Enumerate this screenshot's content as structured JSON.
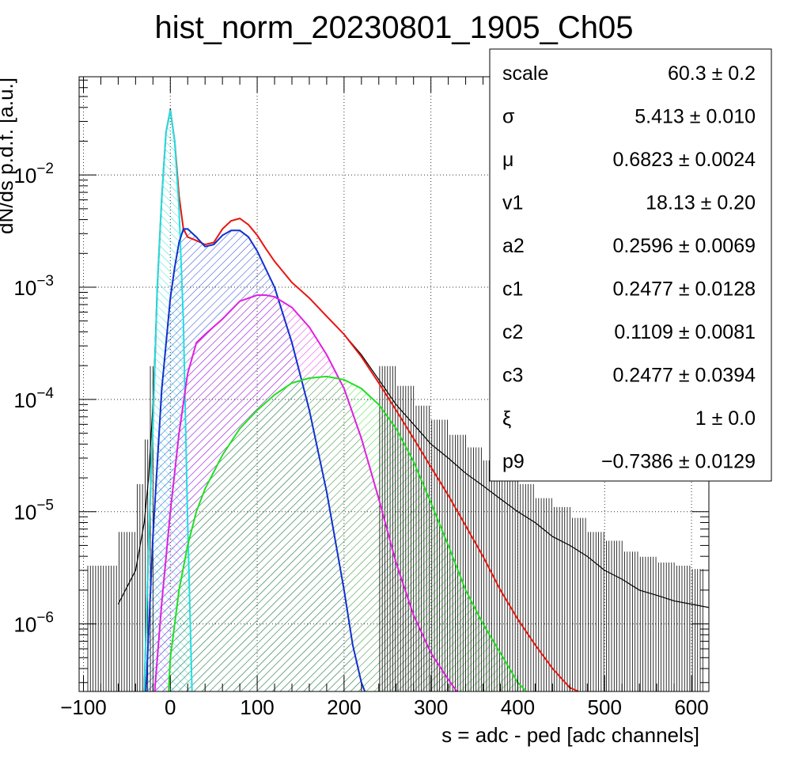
{
  "chart_data": {
    "type": "line",
    "title": "hist_norm_20230801_1905_Ch05",
    "xlabel": "s = adc - ped [adc channels]",
    "ylabel": "dN/ds p.d.f. [a.u.]",
    "xlim": [
      -105,
      620
    ],
    "ylim": [
      2.5e-07,
      0.075
    ],
    "yscale": "log",
    "grid": true,
    "x_ticks": [
      {
        "value": -100,
        "label": "−100"
      },
      {
        "value": 0,
        "label": "0"
      },
      {
        "value": 100,
        "label": "100"
      },
      {
        "value": 200,
        "label": "200"
      },
      {
        "value": 300,
        "label": "300"
      },
      {
        "value": 400,
        "label": "400"
      },
      {
        "value": 500,
        "label": "500"
      },
      {
        "value": 600,
        "label": "600"
      }
    ],
    "y_ticks": [
      {
        "value": 1e-06,
        "base": "10",
        "exp": "−6"
      },
      {
        "value": 1e-05,
        "base": "10",
        "exp": "−5"
      },
      {
        "value": 0.0001,
        "base": "10",
        "exp": "−4"
      },
      {
        "value": 0.001,
        "base": "10",
        "exp": "−3"
      },
      {
        "value": 0.01,
        "base": "10",
        "exp": "−2"
      }
    ],
    "series": [
      {
        "color": "#000000",
        "style": "histogram",
        "x": [
          -60,
          -40,
          -30,
          -25,
          -20,
          -15,
          -10,
          -5,
          0,
          5,
          10,
          15,
          20,
          25,
          30,
          40,
          50,
          60,
          70,
          80,
          90,
          100,
          110,
          120,
          140,
          160,
          180,
          200,
          220,
          240,
          260,
          280,
          300,
          320,
          340,
          360,
          380,
          400,
          420,
          440,
          460,
          480,
          500,
          520,
          540,
          560,
          580,
          600,
          620
        ],
        "y": [
          1.5e-06,
          3e-06,
          8e-06,
          2e-05,
          9e-05,
          0.001,
          0.006,
          0.024,
          0.039,
          0.02,
          0.0065,
          0.0033,
          0.0028,
          0.0027,
          0.0026,
          0.0024,
          0.0025,
          0.0033,
          0.0039,
          0.0041,
          0.0036,
          0.0029,
          0.0022,
          0.0017,
          0.0011,
          0.0008,
          0.00055,
          0.00038,
          0.00025,
          0.00015,
          9e-05,
          6e-05,
          4e-05,
          3e-05,
          2.2e-05,
          1.7e-05,
          1.3e-05,
          1e-05,
          8e-06,
          6e-06,
          5e-06,
          4e-06,
          3e-06,
          2.5e-06,
          2e-06,
          1.8e-06,
          1.6e-06,
          1.5e-06,
          1.4e-06
        ]
      },
      {
        "color": "#e8150f",
        "style": "line",
        "x": [
          -30,
          -25,
          -20,
          -15,
          -10,
          -5,
          0,
          5,
          10,
          15,
          20,
          25,
          30,
          40,
          50,
          60,
          70,
          80,
          90,
          100,
          110,
          120,
          140,
          160,
          180,
          200,
          220,
          240,
          260,
          280,
          300,
          320,
          340,
          360,
          380,
          400,
          420,
          440,
          460,
          470
        ],
        "y": [
          2.5e-07,
          5e-06,
          6e-05,
          0.001,
          0.006,
          0.024,
          0.038,
          0.02,
          0.0065,
          0.0033,
          0.0028,
          0.0027,
          0.0026,
          0.0024,
          0.0025,
          0.0033,
          0.0039,
          0.0041,
          0.0036,
          0.0029,
          0.0022,
          0.0017,
          0.0011,
          0.0008,
          0.00055,
          0.00038,
          0.00024,
          0.00014,
          8e-05,
          4.5e-05,
          2.5e-05,
          1.4e-05,
          7.5e-06,
          4e-06,
          2e-06,
          1.1e-06,
          6.5e-07,
          4e-07,
          2.7e-07,
          2.5e-07
        ]
      },
      {
        "color": "#20e0e0",
        "style": "line-hatched",
        "x": [
          -30,
          -25,
          -20,
          -15,
          -10,
          -5,
          0,
          5,
          10,
          15,
          20,
          25
        ],
        "y": [
          2.5e-07,
          5e-06,
          6e-05,
          0.001,
          0.006,
          0.024,
          0.038,
          0.02,
          0.005,
          0.0005,
          8e-06,
          2.5e-07
        ]
      },
      {
        "color": "#1030d0",
        "style": "line-hatched",
        "x": [
          -28,
          -20,
          -10,
          0,
          5,
          10,
          15,
          20,
          30,
          40,
          50,
          60,
          70,
          80,
          90,
          100,
          120,
          140,
          160,
          180,
          200,
          210,
          220,
          224
        ],
        "y": [
          2.5e-07,
          6e-06,
          0.00012,
          0.0008,
          0.0015,
          0.0025,
          0.0033,
          0.0033,
          0.0028,
          0.0023,
          0.0024,
          0.0029,
          0.0032,
          0.0032,
          0.0028,
          0.0021,
          0.001,
          0.00032,
          8e-05,
          1.5e-05,
          2e-06,
          6.5e-07,
          3e-07,
          2.5e-07
        ]
      },
      {
        "color": "#e020e0",
        "style": "line-hatched",
        "x": [
          -18,
          -10,
          0,
          10,
          20,
          30,
          40,
          60,
          80,
          100,
          110,
          120,
          140,
          160,
          180,
          200,
          220,
          240,
          260,
          280,
          300,
          320,
          330
        ],
        "y": [
          2.5e-07,
          1.5e-06,
          1e-05,
          5e-05,
          0.00017,
          0.00032,
          0.00038,
          0.00052,
          0.00075,
          0.00085,
          0.00085,
          0.00082,
          0.00066,
          0.00044,
          0.00025,
          0.000125,
          4.5e-05,
          1.3e-05,
          3.5e-06,
          1.2e-06,
          5.5e-07,
          3.2e-07,
          2.5e-07
        ]
      },
      {
        "color": "#20e020",
        "style": "line-hatched",
        "x": [
          -2,
          0,
          10,
          20,
          30,
          40,
          60,
          80,
          100,
          120,
          140,
          160,
          180,
          200,
          220,
          240,
          260,
          280,
          300,
          320,
          340,
          360,
          380,
          400,
          410
        ],
        "y": [
          2.5e-07,
          5e-07,
          2e-06,
          5e-06,
          1e-05,
          1.6e-05,
          3.2e-05,
          5.5e-05,
          8e-05,
          0.00011,
          0.00014,
          0.000155,
          0.00016,
          0.00015,
          0.000125,
          9e-05,
          5.5e-05,
          2.8e-05,
          1.2e-05,
          5e-06,
          2e-06,
          1e-06,
          5.5e-07,
          3e-07,
          2.5e-07
        ]
      }
    ]
  },
  "stats": [
    {
      "name": "scale",
      "value": "60.3",
      "error": "0.2"
    },
    {
      "name": "σ",
      "value": "5.413",
      "error": "0.010"
    },
    {
      "name": "μ",
      "value": "0.6823",
      "error": "0.0024"
    },
    {
      "name": "v1",
      "value": "18.13",
      "error": "0.20"
    },
    {
      "name": "a2",
      "value": "0.2596",
      "error": "0.0069"
    },
    {
      "name": "c1",
      "value": "0.2477",
      "error": "0.0128"
    },
    {
      "name": "c2",
      "value": "0.1109",
      "error": "0.0081"
    },
    {
      "name": "c3",
      "value": "0.2477",
      "error": "0.0394"
    },
    {
      "name": "ξ",
      "value": "1",
      "error": "0.0"
    },
    {
      "name": "p9",
      "value": "−0.7386",
      "error": "0.0129"
    }
  ]
}
